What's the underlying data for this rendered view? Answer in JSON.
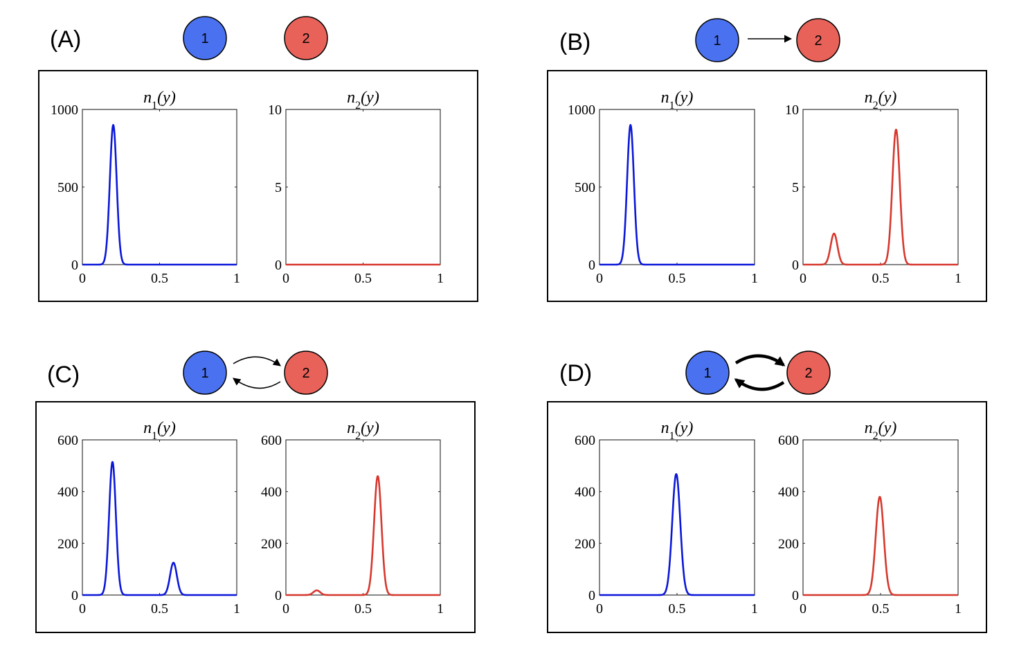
{
  "colors": {
    "node1": "#4a72f0",
    "node2": "#e8625a",
    "curve1": "#0a17d8",
    "curve2": "#d6382e"
  },
  "nodes": {
    "node1_label": "1",
    "node2_label": "2"
  },
  "chart_data": [
    {
      "panel": "(A)",
      "type": "line",
      "connection": "none",
      "subplots": [
        {
          "title": "n1(y)",
          "color": "node1",
          "xlim": [
            0,
            1
          ],
          "ylim": [
            0,
            1000
          ],
          "xticks": [
            "0",
            "0.5",
            "1"
          ],
          "yticks": [
            "0",
            "500",
            "1000"
          ],
          "series": [
            {
              "name": "n1",
              "peaks": [
                {
                  "center": 0.2,
                  "height": 900,
                  "width": 0.022
                }
              ]
            }
          ]
        },
        {
          "title": "n2(y)",
          "color": "node2",
          "xlim": [
            0,
            1
          ],
          "ylim": [
            0,
            10
          ],
          "xticks": [
            "0",
            "0.5",
            "1"
          ],
          "yticks": [
            "0",
            "5",
            "10"
          ],
          "series": [
            {
              "name": "n2",
              "peaks": []
            }
          ]
        }
      ]
    },
    {
      "panel": "(B)",
      "type": "line",
      "connection": "one-way",
      "subplots": [
        {
          "title": "n1(y)",
          "color": "node1",
          "xlim": [
            0,
            1
          ],
          "ylim": [
            0,
            1000
          ],
          "xticks": [
            "0",
            "0.5",
            "1"
          ],
          "yticks": [
            "0",
            "500",
            "1000"
          ],
          "series": [
            {
              "name": "n1",
              "peaks": [
                {
                  "center": 0.2,
                  "height": 900,
                  "width": 0.022
                }
              ]
            }
          ]
        },
        {
          "title": "n2(y)",
          "color": "node2",
          "xlim": [
            0,
            1
          ],
          "ylim": [
            0,
            10
          ],
          "xticks": [
            "0",
            "0.5",
            "1"
          ],
          "yticks": [
            "0",
            "5",
            "10"
          ],
          "series": [
            {
              "name": "n2",
              "peaks": [
                {
                  "center": 0.2,
                  "height": 2.0,
                  "width": 0.022
                },
                {
                  "center": 0.6,
                  "height": 8.7,
                  "width": 0.024
                }
              ]
            }
          ]
        }
      ]
    },
    {
      "panel": "(C)",
      "type": "line",
      "connection": "two-way-thin",
      "subplots": [
        {
          "title": "n1(y)",
          "color": "node1",
          "xlim": [
            0,
            1
          ],
          "ylim": [
            0,
            600
          ],
          "xticks": [
            "0",
            "0.5",
            "1"
          ],
          "yticks": [
            "0",
            "200",
            "400",
            "600"
          ],
          "series": [
            {
              "name": "n1",
              "peaks": [
                {
                  "center": 0.195,
                  "height": 515,
                  "width": 0.022
                },
                {
                  "center": 0.59,
                  "height": 125,
                  "width": 0.022
                }
              ]
            }
          ]
        },
        {
          "title": "n2(y)",
          "color": "node2",
          "xlim": [
            0,
            1
          ],
          "ylim": [
            0,
            600
          ],
          "xticks": [
            "0",
            "0.5",
            "1"
          ],
          "yticks": [
            "0",
            "200",
            "400",
            "600"
          ],
          "series": [
            {
              "name": "n2",
              "peaks": [
                {
                  "center": 0.2,
                  "height": 18,
                  "width": 0.022
                },
                {
                  "center": 0.595,
                  "height": 460,
                  "width": 0.024
                }
              ]
            }
          ]
        }
      ]
    },
    {
      "panel": "(D)",
      "type": "line",
      "connection": "two-way-thick",
      "subplots": [
        {
          "title": "n1(y)",
          "color": "node1",
          "xlim": [
            0,
            1
          ],
          "ylim": [
            0,
            600
          ],
          "xticks": [
            "0",
            "0.5",
            "1"
          ],
          "yticks": [
            "0",
            "200",
            "400",
            "600"
          ],
          "series": [
            {
              "name": "n1",
              "peaks": [
                {
                  "center": 0.495,
                  "height": 468,
                  "width": 0.026
                }
              ]
            }
          ]
        },
        {
          "title": "n2(y)",
          "color": "node2",
          "xlim": [
            0,
            1
          ],
          "ylim": [
            0,
            600
          ],
          "xticks": [
            "0",
            "0.5",
            "1"
          ],
          "yticks": [
            "0",
            "200",
            "400",
            "600"
          ],
          "series": [
            {
              "name": "n2",
              "peaks": [
                {
                  "center": 0.495,
                  "height": 380,
                  "width": 0.026
                }
              ]
            }
          ]
        }
      ]
    }
  ]
}
